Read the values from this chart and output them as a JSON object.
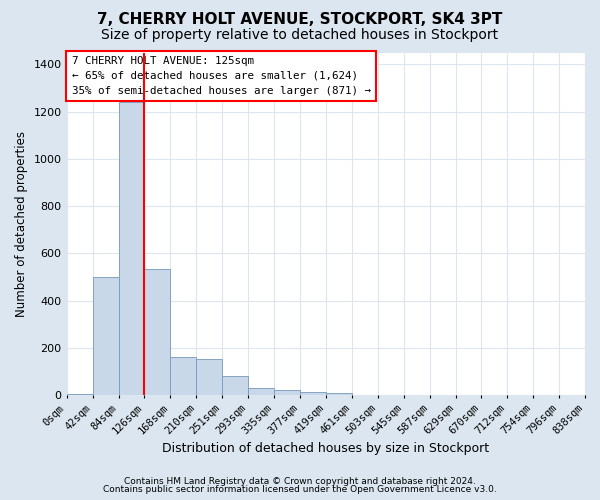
{
  "title": "7, CHERRY HOLT AVENUE, STOCKPORT, SK4 3PT",
  "subtitle": "Size of property relative to detached houses in Stockport",
  "xlabel": "Distribution of detached houses by size in Stockport",
  "ylabel": "Number of detached properties",
  "footer_line1": "Contains HM Land Registry data © Crown copyright and database right 2024.",
  "footer_line2": "Contains public sector information licensed under the Open Government Licence v3.0.",
  "bin_edges": [
    0,
    42,
    84,
    126,
    168,
    210,
    251,
    293,
    335,
    377,
    419,
    461,
    503,
    545,
    587,
    629,
    670,
    712,
    754,
    796,
    838
  ],
  "bar_heights": [
    5,
    500,
    1240,
    535,
    160,
    155,
    80,
    32,
    22,
    12,
    8,
    0,
    0,
    0,
    0,
    0,
    0,
    0,
    0,
    0
  ],
  "bar_color": "#c8d8e8",
  "bar_edge_color": "#7799bb",
  "red_line_x": 125,
  "annotation_text_line1": "7 CHERRY HOLT AVENUE: 125sqm",
  "annotation_text_line2": "← 65% of detached houses are smaller (1,624)",
  "annotation_text_line3": "35% of semi-detached houses are larger (871) →",
  "ylim": [
    0,
    1450
  ],
  "yticks": [
    0,
    200,
    400,
    600,
    800,
    1000,
    1200,
    1400
  ],
  "fig_background_color": "#dce6f0",
  "plot_background_color": "#ffffff",
  "grid_color": "#dce6f0",
  "title_fontsize": 11,
  "subtitle_fontsize": 10,
  "tick_fontsize": 7.5,
  "ylabel_fontsize": 8.5,
  "xlabel_fontsize": 9
}
